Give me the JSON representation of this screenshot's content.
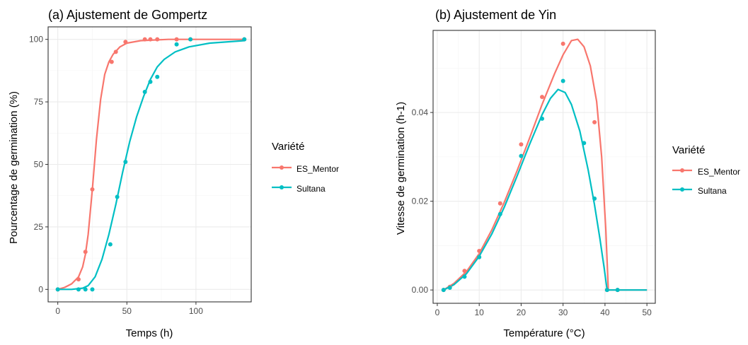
{
  "colors": {
    "es_mentor": "#F8766D",
    "sultana": "#00BFC4",
    "panel_border": "#333333",
    "grid_major": "#EBEBEB",
    "grid_minor": "#F5F5F5",
    "text": "#000000",
    "tick_text": "#4D4D4D"
  },
  "chart_data": [
    {
      "type": "scatter",
      "title": "(a) Ajustement de Gompertz",
      "xlabel": "Temps (h)",
      "ylabel": "Pourcentage de germination (%)",
      "xlim": [
        -7,
        140
      ],
      "ylim": [
        -5,
        105
      ],
      "xticks": [
        0,
        50,
        100
      ],
      "yticks": [
        0,
        25,
        50,
        75,
        100
      ],
      "xtick_labels": [
        "0",
        "50",
        "100"
      ],
      "ytick_labels": [
        "0",
        "25",
        "50",
        "75",
        "100"
      ],
      "grid": true,
      "legend": {
        "title": "Variété",
        "position": "right",
        "entries": [
          "ES_Mentor",
          "Sultana"
        ]
      },
      "series": [
        {
          "name": "ES_Mentor",
          "color": "#F8766D",
          "points": [
            [
              0,
              0
            ],
            [
              15,
              4
            ],
            [
              20,
              15
            ],
            [
              25,
              40
            ],
            [
              39,
              91
            ],
            [
              42,
              95
            ],
            [
              49,
              99
            ],
            [
              63,
              100
            ],
            [
              67,
              100
            ],
            [
              72,
              100
            ],
            [
              86,
              100
            ],
            [
              96,
              100
            ],
            [
              135,
              100
            ]
          ],
          "fit": [
            [
              0,
              0
            ],
            [
              5,
              0.8
            ],
            [
              10,
              2.2
            ],
            [
              15,
              5
            ],
            [
              18,
              9
            ],
            [
              20,
              14
            ],
            [
              22,
              22
            ],
            [
              25,
              40
            ],
            [
              28,
              60
            ],
            [
              31,
              76
            ],
            [
              34,
              86
            ],
            [
              37,
              91
            ],
            [
              40,
              94
            ],
            [
              45,
              97
            ],
            [
              50,
              98.5
            ],
            [
              60,
              99.5
            ],
            [
              80,
              100
            ],
            [
              135,
              100
            ]
          ]
        },
        {
          "name": "Sultana",
          "color": "#00BFC4",
          "points": [
            [
              0,
              0
            ],
            [
              15,
              0
            ],
            [
              20,
              0
            ],
            [
              25,
              0
            ],
            [
              38,
              18
            ],
            [
              43,
              37
            ],
            [
              49,
              51
            ],
            [
              63,
              79
            ],
            [
              67,
              83
            ],
            [
              72,
              85
            ],
            [
              86,
              98
            ],
            [
              96,
              100
            ],
            [
              135,
              100
            ]
          ],
          "fit": [
            [
              0,
              0
            ],
            [
              10,
              0
            ],
            [
              18,
              0.5
            ],
            [
              22,
              1.5
            ],
            [
              27,
              5
            ],
            [
              32,
              12
            ],
            [
              37,
              22
            ],
            [
              42,
              34
            ],
            [
              47,
              47
            ],
            [
              52,
              59
            ],
            [
              57,
              69
            ],
            [
              62,
              77
            ],
            [
              67,
              84
            ],
            [
              72,
              89
            ],
            [
              77,
              92
            ],
            [
              85,
              95
            ],
            [
              95,
              97
            ],
            [
              110,
              98.5
            ],
            [
              135,
              99.5
            ]
          ]
        }
      ]
    },
    {
      "type": "scatter",
      "title": "(b) Ajustement de Yin",
      "xlabel": "Température (°C)",
      "ylabel": "Vitesse de germination (h-1)",
      "xlim": [
        -1,
        52
      ],
      "ylim": [
        -0.003,
        0.0585
      ],
      "xticks": [
        0,
        10,
        20,
        30,
        40,
        50
      ],
      "yticks": [
        0,
        0.02,
        0.04
      ],
      "xtick_labels": [
        "0",
        "10",
        "20",
        "30",
        "40",
        "50"
      ],
      "ytick_labels": [
        "0.00",
        "0.02",
        "0.04"
      ],
      "grid": true,
      "legend": {
        "title": "Variété",
        "position": "right",
        "entries": [
          "ES_Mentor",
          "Sultana"
        ]
      },
      "series": [
        {
          "name": "ES_Mentor",
          "color": "#F8766D",
          "points": [
            [
              1.5,
              0
            ],
            [
              3,
              0.0007
            ],
            [
              6.5,
              0.0043
            ],
            [
              10,
              0.0088
            ],
            [
              15,
              0.0195
            ],
            [
              20,
              0.0328
            ],
            [
              25,
              0.0435
            ],
            [
              30,
              0.0555
            ],
            [
              37.5,
              0.0378
            ],
            [
              40.5,
              0
            ],
            [
              43,
              0
            ]
          ],
          "fit": [
            [
              1.5,
              0
            ],
            [
              4,
              0.0015
            ],
            [
              7,
              0.0042
            ],
            [
              10,
              0.0082
            ],
            [
              13,
              0.0135
            ],
            [
              16,
              0.0198
            ],
            [
              19,
              0.0268
            ],
            [
              22,
              0.0342
            ],
            [
              25,
              0.0418
            ],
            [
              28,
              0.0488
            ],
            [
              30,
              0.053
            ],
            [
              32,
              0.0562
            ],
            [
              33.5,
              0.0565
            ],
            [
              35,
              0.0548
            ],
            [
              36.5,
              0.0505
            ],
            [
              38,
              0.0425
            ],
            [
              39.2,
              0.03
            ],
            [
              40.2,
              0.0135
            ],
            [
              40.8,
              0
            ],
            [
              43,
              0
            ],
            [
              50,
              0
            ]
          ]
        },
        {
          "name": "Sultana",
          "color": "#00BFC4",
          "points": [
            [
              1.5,
              0
            ],
            [
              3,
              0.0005
            ],
            [
              6.5,
              0.003
            ],
            [
              10,
              0.0074
            ],
            [
              15,
              0.0171
            ],
            [
              20,
              0.0302
            ],
            [
              25,
              0.0386
            ],
            [
              30,
              0.0471
            ],
            [
              35,
              0.0331
            ],
            [
              37.5,
              0.0206
            ],
            [
              40.5,
              0
            ],
            [
              43,
              0
            ]
          ],
          "fit": [
            [
              1.5,
              0
            ],
            [
              4,
              0.0012
            ],
            [
              7,
              0.0037
            ],
            [
              10,
              0.0076
            ],
            [
              13,
              0.0126
            ],
            [
              16,
              0.0187
            ],
            [
              19,
              0.0256
            ],
            [
              22,
              0.0328
            ],
            [
              25,
              0.0395
            ],
            [
              27,
              0.0432
            ],
            [
              28.8,
              0.0452
            ],
            [
              30.5,
              0.0445
            ],
            [
              32,
              0.0418
            ],
            [
              34,
              0.0358
            ],
            [
              36,
              0.027
            ],
            [
              37.5,
              0.0192
            ],
            [
              38.8,
              0.0115
            ],
            [
              39.8,
              0.005
            ],
            [
              40.5,
              0
            ],
            [
              43,
              0
            ],
            [
              50,
              0
            ]
          ]
        }
      ]
    }
  ]
}
